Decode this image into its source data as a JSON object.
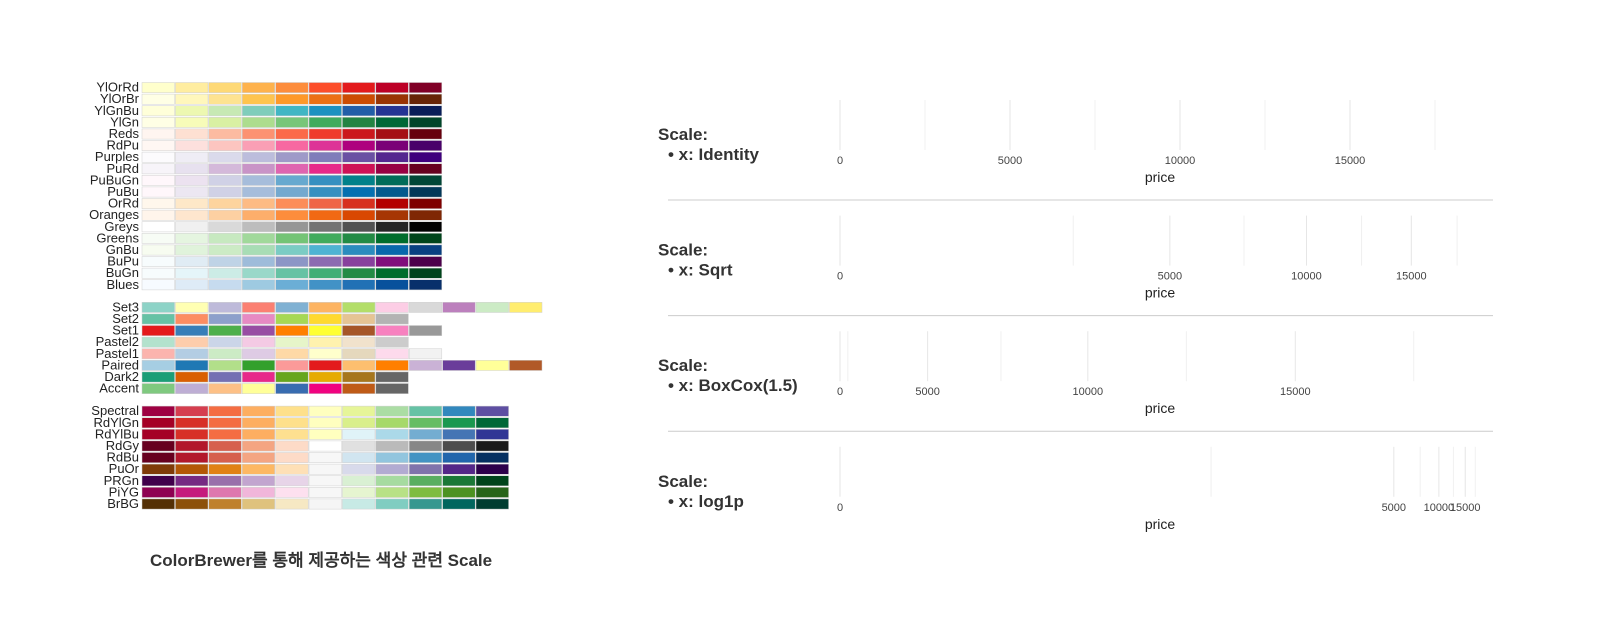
{
  "caption": "ColorBrewer를 통해 제공하는 색상 관련 Scale",
  "palette_groups": [
    [
      {
        "name": "YlOrRd",
        "colors": [
          "#ffffcc",
          "#ffeda0",
          "#fed976",
          "#feb24c",
          "#fd8d3c",
          "#fc4e2a",
          "#e31a1c",
          "#bd0026",
          "#800026"
        ]
      },
      {
        "name": "YlOrBr",
        "colors": [
          "#ffffe5",
          "#fff7bc",
          "#fee391",
          "#fec44f",
          "#fe9929",
          "#ec7014",
          "#cc4c02",
          "#993404",
          "#662506"
        ]
      },
      {
        "name": "YlGnBu",
        "colors": [
          "#ffffd9",
          "#edf8b1",
          "#c7e9b4",
          "#7fcdbb",
          "#41b6c4",
          "#1d91c0",
          "#225ea8",
          "#253494",
          "#081d58"
        ]
      },
      {
        "name": "YlGn",
        "colors": [
          "#ffffe5",
          "#f7fcb9",
          "#d9f0a3",
          "#addd8e",
          "#78c679",
          "#41ab5d",
          "#238443",
          "#006837",
          "#004529"
        ]
      },
      {
        "name": "Reds",
        "colors": [
          "#fff5f0",
          "#fee0d2",
          "#fcbba1",
          "#fc9272",
          "#fb6a4a",
          "#ef3b2c",
          "#cb181d",
          "#a50f15",
          "#67000d"
        ]
      },
      {
        "name": "RdPu",
        "colors": [
          "#fff7f3",
          "#fde0dd",
          "#fcc5c0",
          "#fa9fb5",
          "#f768a1",
          "#dd3497",
          "#ae017e",
          "#7a0177",
          "#49006a"
        ]
      },
      {
        "name": "Purples",
        "colors": [
          "#fcfbfd",
          "#efedf5",
          "#dadaeb",
          "#bcbddc",
          "#9e9ac8",
          "#807dba",
          "#6a51a3",
          "#54278f",
          "#3f007d"
        ]
      },
      {
        "name": "PuRd",
        "colors": [
          "#f7f4f9",
          "#e7e1ef",
          "#d4b9da",
          "#c994c7",
          "#df65b0",
          "#e7298a",
          "#ce1256",
          "#980043",
          "#67001f"
        ]
      },
      {
        "name": "PuBuGn",
        "colors": [
          "#fff7fb",
          "#ece2f0",
          "#d0d1e6",
          "#a6bddb",
          "#67a9cf",
          "#3690c0",
          "#02818a",
          "#016c59",
          "#014636"
        ]
      },
      {
        "name": "PuBu",
        "colors": [
          "#fff7fb",
          "#ece7f2",
          "#d0d1e6",
          "#a6bddb",
          "#74a9cf",
          "#3690c0",
          "#0570b0",
          "#045a8d",
          "#023858"
        ]
      },
      {
        "name": "OrRd",
        "colors": [
          "#fff7ec",
          "#fee8c8",
          "#fdd49e",
          "#fdbb84",
          "#fc8d59",
          "#ef6548",
          "#d7301f",
          "#b30000",
          "#7f0000"
        ]
      },
      {
        "name": "Oranges",
        "colors": [
          "#fff5eb",
          "#fee6ce",
          "#fdd0a2",
          "#fdae6b",
          "#fd8d3c",
          "#f16913",
          "#d94801",
          "#a63603",
          "#7f2704"
        ]
      },
      {
        "name": "Greys",
        "colors": [
          "#ffffff",
          "#f0f0f0",
          "#d9d9d9",
          "#bdbdbd",
          "#969696",
          "#737373",
          "#525252",
          "#252525",
          "#000000"
        ]
      },
      {
        "name": "Greens",
        "colors": [
          "#f7fcf5",
          "#e5f5e0",
          "#c7e9c0",
          "#a1d99b",
          "#74c476",
          "#41ab5d",
          "#238b45",
          "#006d2c",
          "#00441b"
        ]
      },
      {
        "name": "GnBu",
        "colors": [
          "#f7fcf0",
          "#e0f3db",
          "#ccebc5",
          "#a8ddb5",
          "#7bccc4",
          "#4eb3d3",
          "#2b8cbe",
          "#0868ac",
          "#084081"
        ]
      },
      {
        "name": "BuPu",
        "colors": [
          "#f7fcfd",
          "#e0ecf4",
          "#bfd3e6",
          "#9ebcda",
          "#8c96c6",
          "#8c6bb1",
          "#88419d",
          "#810f7c",
          "#4d004b"
        ]
      },
      {
        "name": "BuGn",
        "colors": [
          "#f7fcfd",
          "#e5f5f9",
          "#ccece6",
          "#99d8c9",
          "#66c2a4",
          "#41ae76",
          "#238b45",
          "#006d2c",
          "#00441b"
        ]
      },
      {
        "name": "Blues",
        "colors": [
          "#f7fbff",
          "#deebf7",
          "#c6dbef",
          "#9ecae1",
          "#6baed6",
          "#4292c6",
          "#2171b5",
          "#08519c",
          "#08306b"
        ]
      }
    ],
    [
      {
        "name": "Set3",
        "colors": [
          "#8dd3c7",
          "#ffffb3",
          "#bebada",
          "#fb8072",
          "#80b1d3",
          "#fdb462",
          "#b3de69",
          "#fccde5",
          "#d9d9d9",
          "#bc80bd",
          "#ccebc5",
          "#ffed6f"
        ]
      },
      {
        "name": "Set2",
        "colors": [
          "#66c2a5",
          "#fc8d62",
          "#8da0cb",
          "#e78ac3",
          "#a6d854",
          "#ffd92f",
          "#e5c494",
          "#b3b3b3"
        ]
      },
      {
        "name": "Set1",
        "colors": [
          "#e41a1c",
          "#377eb8",
          "#4daf4a",
          "#984ea3",
          "#ff7f00",
          "#ffff33",
          "#a65628",
          "#f781bf",
          "#999999"
        ]
      },
      {
        "name": "Pastel2",
        "colors": [
          "#b3e2cd",
          "#fdcdac",
          "#cbd5e8",
          "#f4cae4",
          "#e6f5c9",
          "#fff2ae",
          "#f1e2cc",
          "#cccccc"
        ]
      },
      {
        "name": "Pastel1",
        "colors": [
          "#fbb4ae",
          "#b3cde3",
          "#ccebc5",
          "#decbe4",
          "#fed9a6",
          "#ffffcc",
          "#e5d8bd",
          "#fddaec",
          "#f2f2f2"
        ]
      },
      {
        "name": "Paired",
        "colors": [
          "#a6cee3",
          "#1f78b4",
          "#b2df8a",
          "#33a02c",
          "#fb9a99",
          "#e31a1c",
          "#fdbf6f",
          "#ff7f00",
          "#cab2d6",
          "#6a3d9a",
          "#ffff99",
          "#b15928"
        ]
      },
      {
        "name": "Dark2",
        "colors": [
          "#1b9e77",
          "#d95f02",
          "#7570b3",
          "#e7298a",
          "#66a61e",
          "#e6ab02",
          "#a6761d",
          "#666666"
        ]
      },
      {
        "name": "Accent",
        "colors": [
          "#7fc97f",
          "#beaed4",
          "#fdc086",
          "#ffff99",
          "#386cb0",
          "#f0027f",
          "#bf5b17",
          "#666666"
        ]
      }
    ],
    [
      {
        "name": "Spectral",
        "colors": [
          "#9e0142",
          "#d53e4f",
          "#f46d43",
          "#fdae61",
          "#fee08b",
          "#ffffbf",
          "#e6f598",
          "#abdda4",
          "#66c2a5",
          "#3288bd",
          "#5e4fa2"
        ]
      },
      {
        "name": "RdYlGn",
        "colors": [
          "#a50026",
          "#d73027",
          "#f46d43",
          "#fdae61",
          "#fee08b",
          "#ffffbf",
          "#d9ef8b",
          "#a6d96a",
          "#66bd63",
          "#1a9850",
          "#006837"
        ]
      },
      {
        "name": "RdYlBu",
        "colors": [
          "#a50026",
          "#d73027",
          "#f46d43",
          "#fdae61",
          "#fee090",
          "#ffffbf",
          "#e0f3f8",
          "#abd9e9",
          "#74add1",
          "#4575b4",
          "#313695"
        ]
      },
      {
        "name": "RdGy",
        "colors": [
          "#67001f",
          "#b2182b",
          "#d6604d",
          "#f4a582",
          "#fddbc7",
          "#ffffff",
          "#e0e0e0",
          "#bababa",
          "#878787",
          "#4d4d4d",
          "#1a1a1a"
        ]
      },
      {
        "name": "RdBu",
        "colors": [
          "#67001f",
          "#b2182b",
          "#d6604d",
          "#f4a582",
          "#fddbc7",
          "#f7f7f7",
          "#d1e5f0",
          "#92c5de",
          "#4393c3",
          "#2166ac",
          "#053061"
        ]
      },
      {
        "name": "PuOr",
        "colors": [
          "#7f3b08",
          "#b35806",
          "#e08214",
          "#fdb863",
          "#fee0b6",
          "#f7f7f7",
          "#d8daeb",
          "#b2abd2",
          "#8073ac",
          "#542788",
          "#2d004b"
        ]
      },
      {
        "name": "PRGn",
        "colors": [
          "#40004b",
          "#762a83",
          "#9970ab",
          "#c2a5cf",
          "#e7d4e8",
          "#f7f7f7",
          "#d9f0d3",
          "#a6dba0",
          "#5aae61",
          "#1b7837",
          "#00441b"
        ]
      },
      {
        "name": "PiYG",
        "colors": [
          "#8e0152",
          "#c51b7d",
          "#de77ae",
          "#f1b6da",
          "#fde0ef",
          "#f7f7f7",
          "#e6f5d0",
          "#b8e186",
          "#7fbc41",
          "#4d9221",
          "#276419"
        ]
      },
      {
        "name": "BrBG",
        "colors": [
          "#543005",
          "#8c510a",
          "#bf812d",
          "#dfc27d",
          "#f6e8c3",
          "#f5f5f5",
          "#c7eae5",
          "#80cdc1",
          "#35978f",
          "#01665e",
          "#003c30"
        ]
      }
    ]
  ],
  "chart_data": {
    "type": "axis-scale-comparison",
    "xlabel": "price",
    "xlim": [
      0,
      18823
    ],
    "panels": [
      {
        "title": "Scale:",
        "bullet": "x: Identity",
        "major_ticks": [
          0,
          5000,
          10000,
          15000
        ],
        "minor_ticks": [
          2500,
          7500,
          12500,
          17500
        ]
      },
      {
        "title": "Scale:",
        "bullet": "x: Sqrt",
        "major_ticks": [
          0,
          5000,
          10000,
          15000
        ],
        "minor_ticks": [
          2500,
          7500,
          12500,
          17500
        ]
      },
      {
        "title": "Scale:",
        "bullet": "x: BoxCox(1.5)",
        "major_ticks": [
          0,
          5000,
          10000,
          15000
        ],
        "minor_ticks": [
          1000,
          7500,
          12500,
          17500
        ]
      },
      {
        "title": "Scale:",
        "bullet": "x: log1p",
        "major_ticks": [
          0,
          5000,
          10000,
          15000
        ],
        "minor_ticks": [
          300,
          7500,
          12500,
          17500
        ]
      }
    ]
  }
}
